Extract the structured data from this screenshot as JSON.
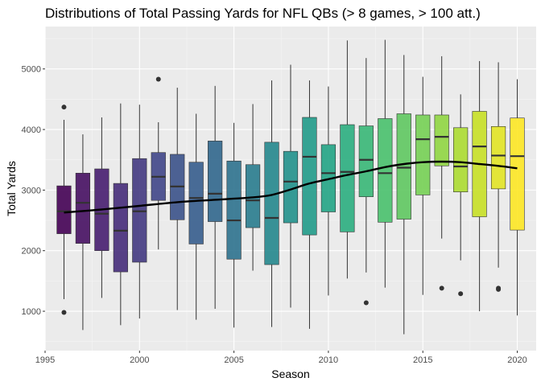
{
  "chart_data": {
    "type": "box",
    "title": "Distributions of Total Passing Yards for NFL QBs (> 8 games, > 100 att.)",
    "xlabel": "Season",
    "ylabel": "Total Yards",
    "xlim": [
      1995,
      2021
    ],
    "ylim": [
      350,
      5700
    ],
    "x_ticks": [
      1995,
      2000,
      2005,
      2010,
      2015,
      2020
    ],
    "y_ticks": [
      1000,
      2000,
      3000,
      4000,
      5000
    ],
    "grid": true,
    "colormap": "viridis",
    "boxes": [
      {
        "season": 1996,
        "min": 1200,
        "q1": 2280,
        "median": 2650,
        "q3": 3070,
        "max": 4160,
        "outliers": [
          980,
          4370
        ]
      },
      {
        "season": 1997,
        "min": 690,
        "q1": 2120,
        "median": 2790,
        "q3": 3280,
        "max": 3920,
        "outliers": []
      },
      {
        "season": 1998,
        "min": 1220,
        "q1": 2000,
        "median": 2610,
        "q3": 3350,
        "max": 4200,
        "outliers": []
      },
      {
        "season": 1999,
        "min": 770,
        "q1": 1650,
        "median": 2330,
        "q3": 3110,
        "max": 4430,
        "outliers": []
      },
      {
        "season": 2000,
        "min": 880,
        "q1": 1810,
        "median": 2650,
        "q3": 3520,
        "max": 4410,
        "outliers": []
      },
      {
        "season": 2001,
        "min": 2020,
        "q1": 2830,
        "median": 3220,
        "q3": 3620,
        "max": 4120,
        "outliers": [
          4830
        ]
      },
      {
        "season": 2002,
        "min": 1020,
        "q1": 2510,
        "median": 3060,
        "q3": 3590,
        "max": 4690,
        "outliers": []
      },
      {
        "season": 2003,
        "min": 860,
        "q1": 2110,
        "median": 2870,
        "q3": 3460,
        "max": 4260,
        "outliers": []
      },
      {
        "season": 2004,
        "min": 1040,
        "q1": 2480,
        "median": 2940,
        "q3": 3810,
        "max": 4720,
        "outliers": []
      },
      {
        "season": 2005,
        "min": 730,
        "q1": 1860,
        "median": 2500,
        "q3": 3480,
        "max": 4110,
        "outliers": []
      },
      {
        "season": 2006,
        "min": 1670,
        "q1": 2380,
        "median": 2830,
        "q3": 3420,
        "max": 4420,
        "outliers": []
      },
      {
        "season": 2007,
        "min": 740,
        "q1": 1770,
        "median": 2540,
        "q3": 3790,
        "max": 4810,
        "outliers": []
      },
      {
        "season": 2008,
        "min": 1060,
        "q1": 2460,
        "median": 3140,
        "q3": 3640,
        "max": 5070,
        "outliers": []
      },
      {
        "season": 2009,
        "min": 710,
        "q1": 2260,
        "median": 3550,
        "q3": 4200,
        "max": 4810,
        "outliers": []
      },
      {
        "season": 2010,
        "min": 1260,
        "q1": 2640,
        "median": 3280,
        "q3": 3750,
        "max": 4710,
        "outliers": []
      },
      {
        "season": 2011,
        "min": 1540,
        "q1": 2310,
        "median": 3300,
        "q3": 4080,
        "max": 5470,
        "outliers": []
      },
      {
        "season": 2012,
        "min": 1640,
        "q1": 2890,
        "median": 3500,
        "q3": 4060,
        "max": 5180,
        "outliers": [
          1140
        ]
      },
      {
        "season": 2013,
        "min": 1390,
        "q1": 2470,
        "median": 3280,
        "q3": 4180,
        "max": 5480,
        "outliers": []
      },
      {
        "season": 2014,
        "min": 620,
        "q1": 2520,
        "median": 3370,
        "q3": 4260,
        "max": 5230,
        "outliers": []
      },
      {
        "season": 2015,
        "min": 1270,
        "q1": 2920,
        "median": 3840,
        "q3": 4240,
        "max": 4870,
        "outliers": []
      },
      {
        "season": 2016,
        "min": 2200,
        "q1": 3400,
        "median": 3880,
        "q3": 4240,
        "max": 5210,
        "outliers": [
          1380
        ]
      },
      {
        "season": 2017,
        "min": 1840,
        "q1": 2970,
        "median": 3390,
        "q3": 4030,
        "max": 4580,
        "outliers": [
          1290
        ]
      },
      {
        "season": 2018,
        "min": 1000,
        "q1": 2560,
        "median": 3720,
        "q3": 4300,
        "max": 5130,
        "outliers": []
      },
      {
        "season": 2019,
        "min": 1720,
        "q1": 3020,
        "median": 3570,
        "q3": 4050,
        "max": 5110,
        "outliers": [
          1360,
          1380
        ]
      },
      {
        "season": 2020,
        "min": 930,
        "q1": 2340,
        "median": 3560,
        "q3": 4190,
        "max": 4830,
        "outliers": []
      }
    ],
    "smooth": {
      "x": [
        1996,
        1998,
        2000,
        2002,
        2004,
        2006,
        2007,
        2008,
        2009,
        2010,
        2011,
        2012,
        2013,
        2014,
        2015,
        2016,
        2017,
        2018,
        2019,
        2020
      ],
      "y": [
        2630,
        2680,
        2740,
        2800,
        2840,
        2880,
        2920,
        3010,
        3110,
        3180,
        3250,
        3310,
        3380,
        3430,
        3460,
        3470,
        3460,
        3430,
        3400,
        3360
      ]
    }
  }
}
